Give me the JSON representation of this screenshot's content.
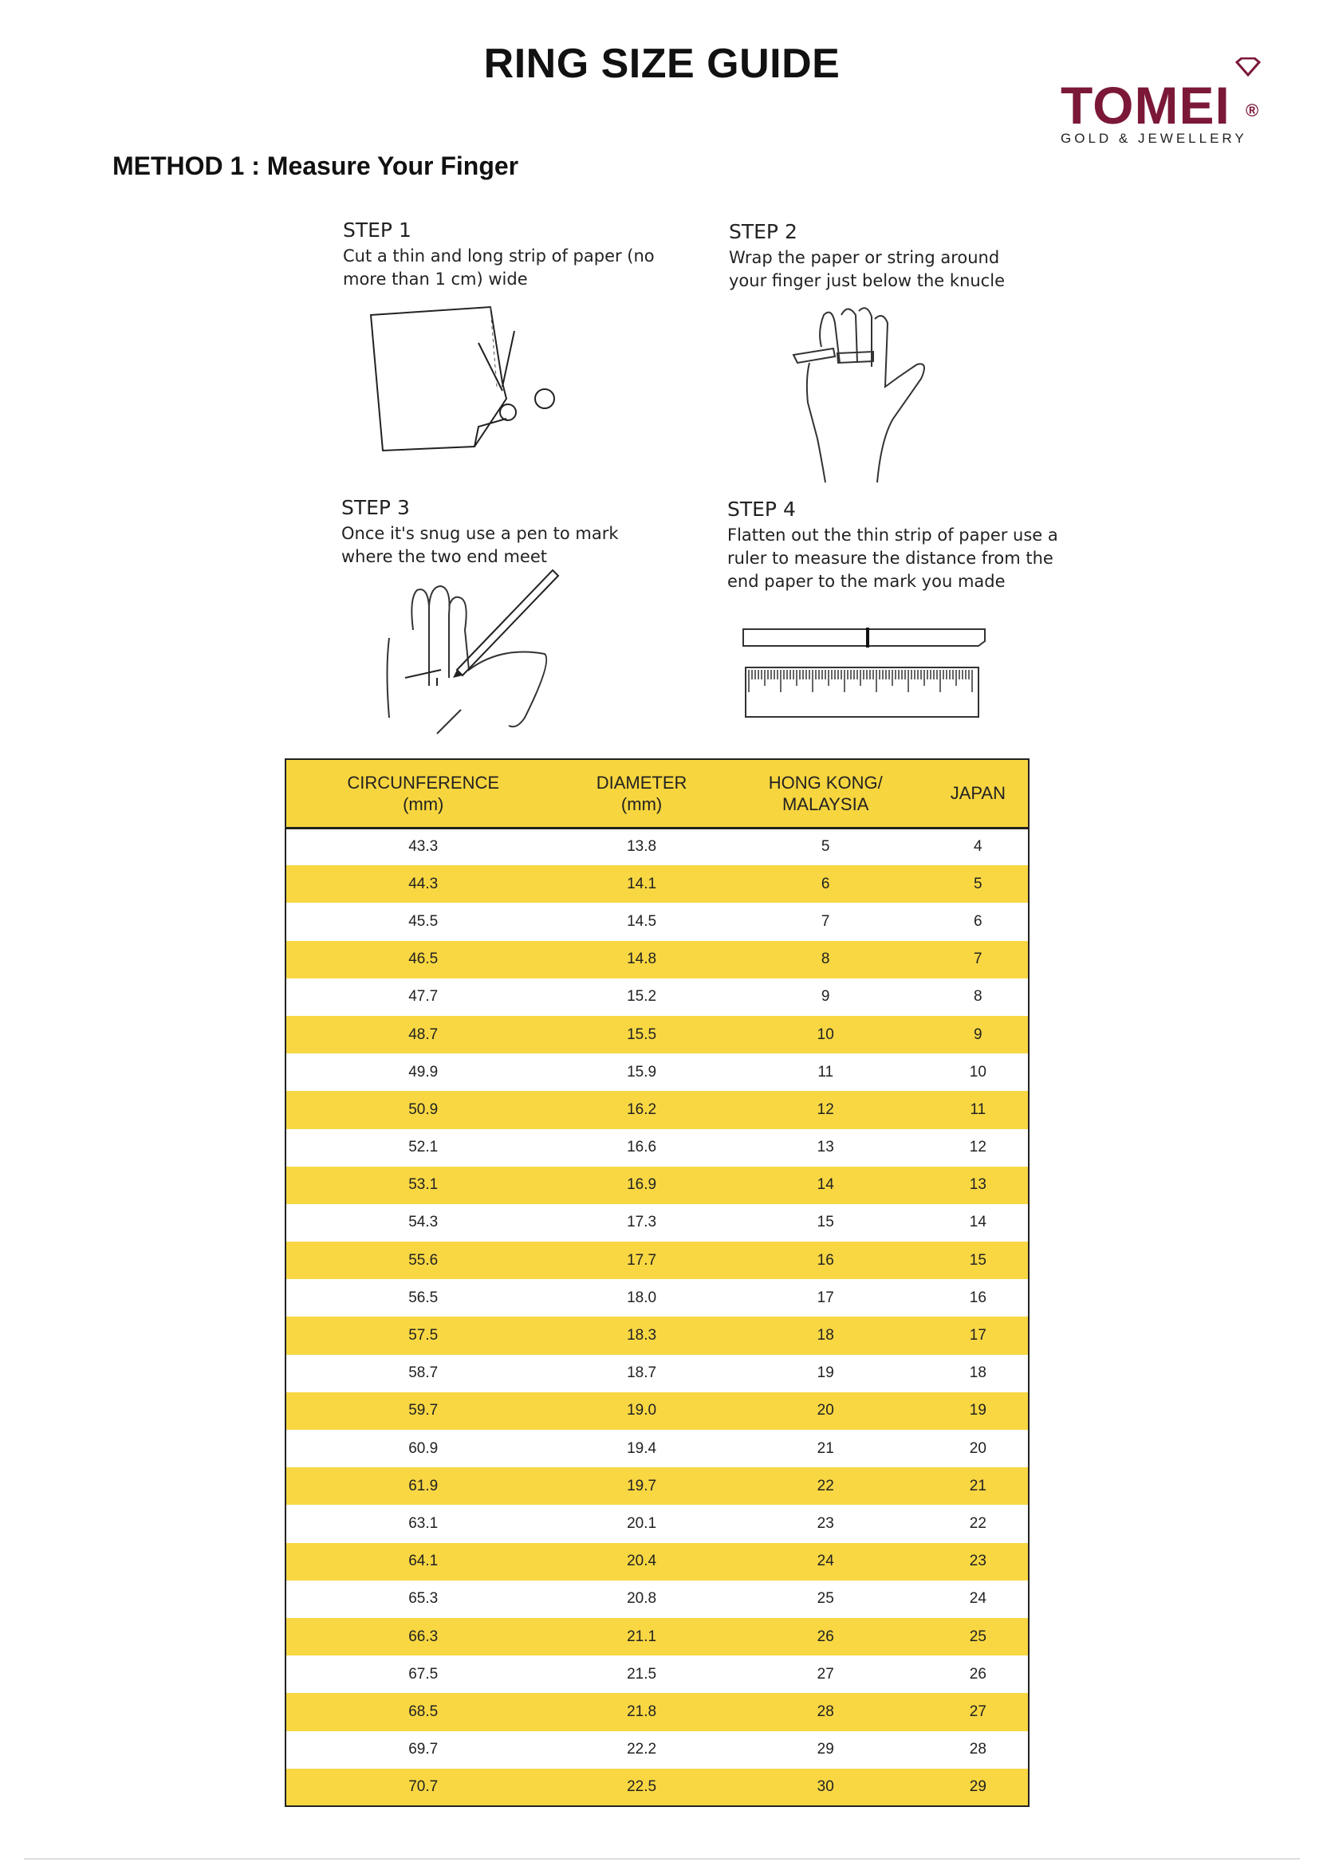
{
  "title": "RING SIZE GUIDE",
  "logo": {
    "brand": "TOMEI",
    "registered": "®",
    "tagline": "GOLD & JEWELLERY",
    "color": "#7b1838"
  },
  "method": "METHOD 1 : Measure Your Finger",
  "steps": [
    {
      "heading": "STEP 1",
      "text": "Cut a thin and long strip of paper (no more than 1 cm) wide"
    },
    {
      "heading": "STEP 2",
      "text": "Wrap the paper or string around your finger just below the knucle"
    },
    {
      "heading": "STEP 3",
      "text": "Once it's snug use a pen to mark where the two end meet"
    },
    {
      "heading": "STEP 4",
      "text": "Flatten out the thin strip of paper use a ruler to measure the distance from the end paper to the mark you made"
    }
  ],
  "table": {
    "accent": "#f7d53e",
    "headers": [
      [
        "CIRCUNFERENCE",
        "(mm)"
      ],
      [
        "DIAMETER",
        "(mm)"
      ],
      [
        "HONG KONG/",
        "MALAYSIA"
      ],
      [
        "JAPAN",
        ""
      ]
    ],
    "rows": [
      [
        "43.3",
        "13.8",
        "5",
        "4"
      ],
      [
        "44.3",
        "14.1",
        "6",
        "5"
      ],
      [
        "45.5",
        "14.5",
        "7",
        "6"
      ],
      [
        "46.5",
        "14.8",
        "8",
        "7"
      ],
      [
        "47.7",
        "15.2",
        "9",
        "8"
      ],
      [
        "48.7",
        "15.5",
        "10",
        "9"
      ],
      [
        "49.9",
        "15.9",
        "11",
        "10"
      ],
      [
        "50.9",
        "16.2",
        "12",
        "11"
      ],
      [
        "52.1",
        "16.6",
        "13",
        "12"
      ],
      [
        "53.1",
        "16.9",
        "14",
        "13"
      ],
      [
        "54.3",
        "17.3",
        "15",
        "14"
      ],
      [
        "55.6",
        "17.7",
        "16",
        "15"
      ],
      [
        "56.5",
        "18.0",
        "17",
        "16"
      ],
      [
        "57.5",
        "18.3",
        "18",
        "17"
      ],
      [
        "58.7",
        "18.7",
        "19",
        "18"
      ],
      [
        "59.7",
        "19.0",
        "20",
        "19"
      ],
      [
        "60.9",
        "19.4",
        "21",
        "20"
      ],
      [
        "61.9",
        "19.7",
        "22",
        "21"
      ],
      [
        "63.1",
        "20.1",
        "23",
        "22"
      ],
      [
        "64.1",
        "20.4",
        "24",
        "23"
      ],
      [
        "65.3",
        "20.8",
        "25",
        "24"
      ],
      [
        "66.3",
        "21.1",
        "26",
        "25"
      ],
      [
        "67.5",
        "21.5",
        "27",
        "26"
      ],
      [
        "68.5",
        "21.8",
        "28",
        "27"
      ],
      [
        "69.7",
        "22.2",
        "29",
        "28"
      ],
      [
        "70.7",
        "22.5",
        "30",
        "29"
      ]
    ]
  }
}
